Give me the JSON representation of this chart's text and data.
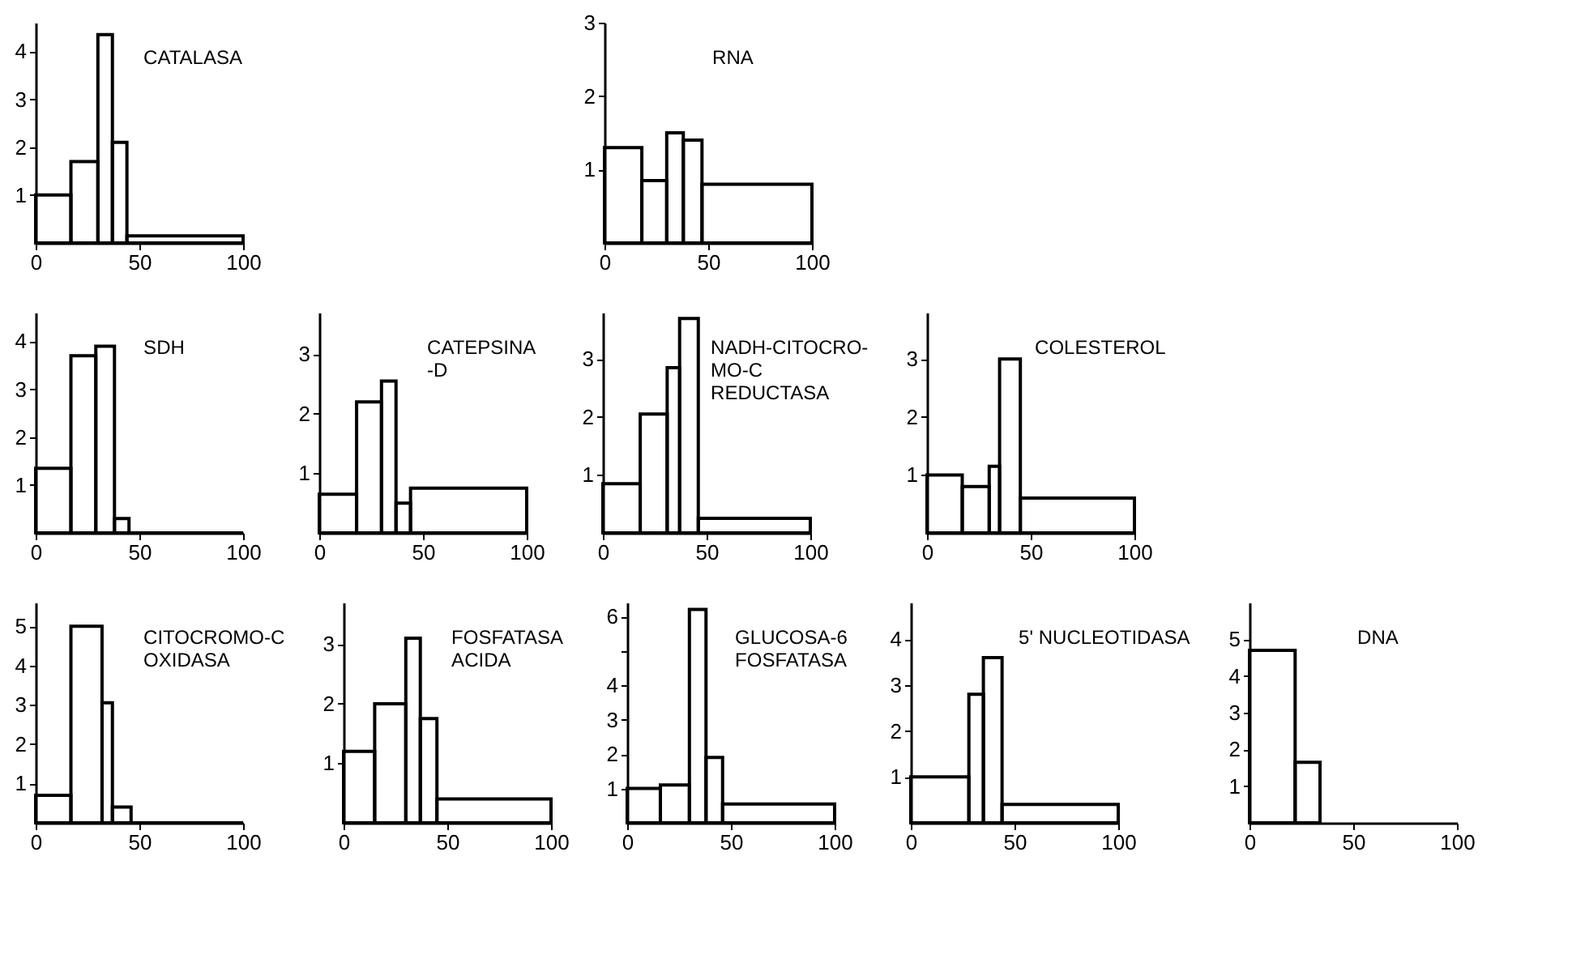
{
  "chart_data": [
    {
      "type": "histogram",
      "title": "CATALASA",
      "bins": [
        0,
        17,
        30,
        37,
        44,
        100
      ],
      "values": [
        1.0,
        1.7,
        4.35,
        2.1,
        0.15
      ],
      "color": "#000000",
      "xlim": [
        0,
        100
      ],
      "xticks": [
        0,
        50,
        100
      ],
      "ylim": [
        0,
        4.6
      ],
      "yticks": [
        1,
        2,
        3,
        4
      ]
    },
    {
      "type": "histogram",
      "title": "RNA",
      "bins": [
        0,
        18,
        30,
        38,
        47,
        100
      ],
      "values": [
        1.3,
        0.85,
        1.5,
        1.4,
        0.8
      ],
      "color": "#000000",
      "xlim": [
        0,
        100
      ],
      "xticks": [
        0,
        50,
        100
      ],
      "ylim": [
        0,
        3
      ],
      "yticks": [
        1,
        2,
        3
      ]
    },
    {
      "type": "histogram",
      "title": "SDH",
      "bins": [
        0,
        17,
        29,
        38,
        45,
        100
      ],
      "values": [
        1.35,
        3.7,
        3.9,
        0.3,
        0
      ],
      "color": "#000000",
      "xlim": [
        0,
        100
      ],
      "xticks": [
        0,
        50,
        100
      ],
      "ylim": [
        0,
        4.6
      ],
      "yticks": [
        1,
        2,
        3,
        4
      ]
    },
    {
      "type": "histogram",
      "title": "CATEPSINA\n-D",
      "bins": [
        0,
        18,
        30,
        37,
        44,
        100
      ],
      "values": [
        0.65,
        2.2,
        2.55,
        0.5,
        0.75
      ],
      "color": "#000000",
      "xlim": [
        0,
        100
      ],
      "xticks": [
        0,
        50,
        100
      ],
      "ylim": [
        0,
        3.7
      ],
      "yticks": [
        1,
        2,
        3
      ]
    },
    {
      "type": "histogram",
      "title": "NADH-CITOCRO-\nMO-C\nREDUCTASA",
      "bins": [
        0,
        18,
        31,
        37,
        46,
        100
      ],
      "values": [
        0.85,
        2.05,
        2.85,
        3.7,
        0.25
      ],
      "color": "#000000",
      "xlim": [
        0,
        100
      ],
      "xticks": [
        0,
        50,
        100
      ],
      "ylim": [
        0,
        3.8
      ],
      "yticks": [
        1,
        2,
        3
      ]
    },
    {
      "type": "histogram",
      "title": "COLESTEROL",
      "bins": [
        0,
        17,
        30,
        35,
        45,
        100
      ],
      "values": [
        1.0,
        0.8,
        1.15,
        3.0,
        0.6
      ],
      "color": "#000000",
      "xlim": [
        0,
        100
      ],
      "xticks": [
        0,
        50,
        100
      ],
      "ylim": [
        0,
        3.8
      ],
      "yticks": [
        1,
        2,
        3
      ]
    },
    {
      "type": "histogram",
      "title": "CITOCROMO-C\nOXIDASA",
      "bins": [
        0,
        17,
        32,
        37,
        46,
        100
      ],
      "values": [
        0.7,
        5.0,
        3.05,
        0.4,
        0
      ],
      "color": "#000000",
      "xlim": [
        0,
        100
      ],
      "xticks": [
        0,
        50,
        100
      ],
      "ylim": [
        0,
        5.6
      ],
      "yticks": [
        1,
        2,
        3,
        4,
        5
      ]
    },
    {
      "type": "histogram",
      "title": "FOSFATASA\nACIDA",
      "bins": [
        0,
        15,
        30,
        37,
        45,
        100
      ],
      "values": [
        1.2,
        2.0,
        3.1,
        1.75,
        0.4
      ],
      "color": "#000000",
      "xlim": [
        0,
        100
      ],
      "xticks": [
        0,
        50,
        100
      ],
      "ylim": [
        0,
        3.7
      ],
      "yticks": [
        1,
        2,
        3
      ]
    },
    {
      "type": "histogram",
      "title": "GLUCOSA-6\nFOSFATASA",
      "bins": [
        0,
        16,
        30,
        38,
        46,
        100
      ],
      "values": [
        1.0,
        1.1,
        6.2,
        1.9,
        0.55
      ],
      "color": "#000000",
      "xlim": [
        0,
        100
      ],
      "xticks": [
        0,
        50,
        100
      ],
      "ylim": [
        0,
        6.4
      ],
      "yticks": [
        1,
        2,
        3,
        4,
        {
          "value": 5,
          "label": null
        },
        6
      ]
    },
    {
      "type": "histogram",
      "title": "5' NUCLEOTIDASA",
      "bins": [
        0,
        28,
        35,
        44,
        100
      ],
      "values": [
        1.0,
        2.8,
        3.6,
        0.4
      ],
      "color": "#000000",
      "xlim": [
        0,
        100
      ],
      "xticks": [
        0,
        50,
        100
      ],
      "ylim": [
        0,
        4.8
      ],
      "yticks": [
        1,
        2,
        3,
        4
      ]
    },
    {
      "type": "histogram",
      "title": "DNA",
      "bins": [
        0,
        22,
        34
      ],
      "values": [
        4.7,
        1.65
      ],
      "color": "#000000",
      "xlim": [
        0,
        100
      ],
      "xticks": [
        0,
        50,
        100
      ],
      "ylim": [
        0,
        6
      ],
      "yticks": [
        1,
        2,
        3,
        4,
        5
      ]
    }
  ]
}
